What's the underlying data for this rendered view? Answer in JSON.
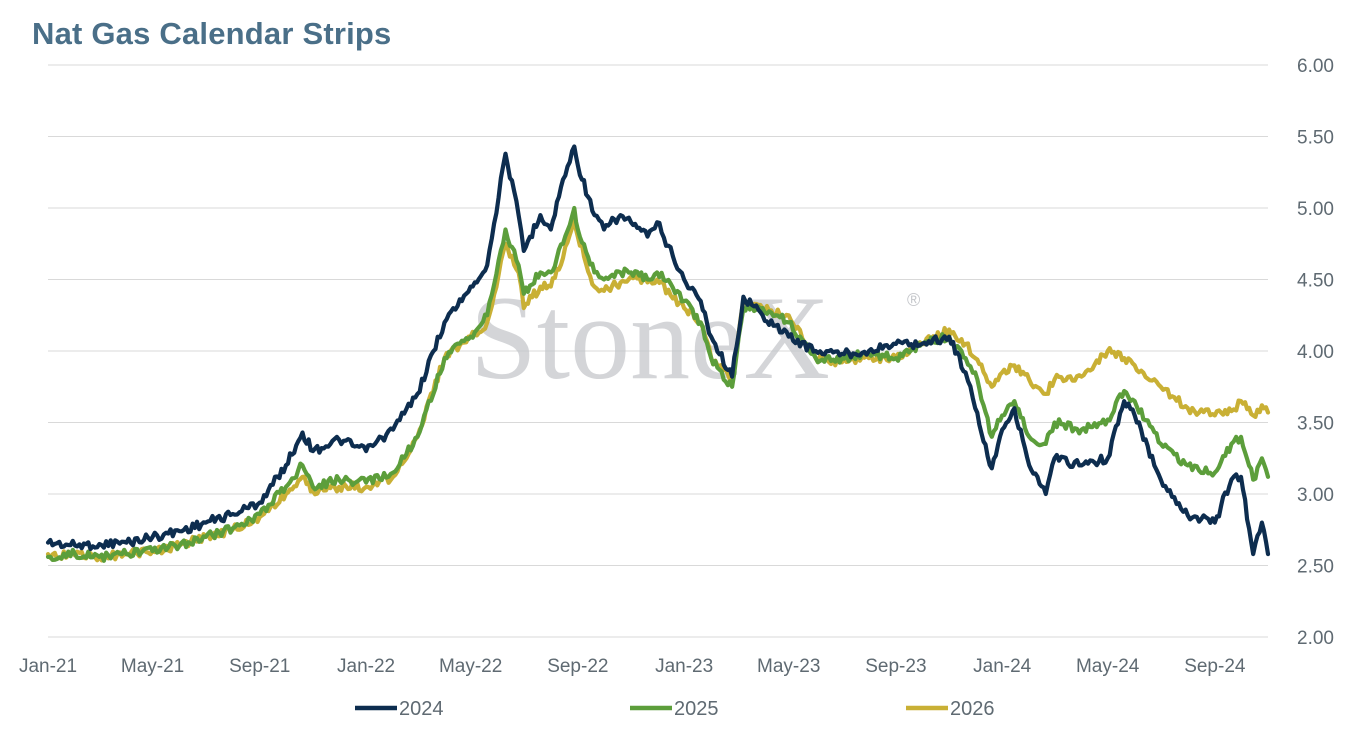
{
  "title": "Nat Gas Calendar Strips",
  "watermark": "StoneX",
  "watermark_mark": "®",
  "colors": {
    "title": "#4a6f88",
    "grid": "#d9d9d9",
    "tick_text": "#5f6a72",
    "watermark": "#c4c6ca"
  },
  "chart_data": {
    "type": "line",
    "title": "Nat Gas Calendar Strips",
    "xlabel": "",
    "ylabel": "",
    "ylim": [
      2.0,
      6.0
    ],
    "y_ticks": [
      "2.00",
      "2.50",
      "3.00",
      "3.50",
      "4.00",
      "4.50",
      "5.00",
      "5.50",
      "6.00"
    ],
    "x_ticks": [
      "Jan-21",
      "May-21",
      "Sep-21",
      "Jan-22",
      "May-22",
      "Sep-22",
      "Jan-23",
      "May-23",
      "Sep-23",
      "Jan-24",
      "May-24",
      "Sep-24"
    ],
    "x_range": [
      "2021-01",
      "2024-11"
    ],
    "grid": true,
    "legend_position": "bottom",
    "series": [
      {
        "name": "2024",
        "color": "#0d2d4f",
        "points": [
          [
            "2021-01",
            2.66
          ],
          [
            "2021-02",
            2.64
          ],
          [
            "2021-03",
            2.65
          ],
          [
            "2021-04",
            2.66
          ],
          [
            "2021-05",
            2.7
          ],
          [
            "2021-06",
            2.74
          ],
          [
            "2021-07",
            2.8
          ],
          [
            "2021-08",
            2.86
          ],
          [
            "2021-09",
            2.94
          ],
          [
            "2021-10",
            3.2
          ],
          [
            "2021-10-20",
            3.43
          ],
          [
            "2021-11",
            3.3
          ],
          [
            "2021-12",
            3.38
          ],
          [
            "2022-01",
            3.3
          ],
          [
            "2022-02",
            3.45
          ],
          [
            "2022-03",
            3.7
          ],
          [
            "2022-04",
            4.2
          ],
          [
            "2022-05",
            4.45
          ],
          [
            "2022-05-20",
            4.6
          ],
          [
            "2022-06-10",
            5.38
          ],
          [
            "2022-06-25",
            4.95
          ],
          [
            "2022-07",
            4.7
          ],
          [
            "2022-07-20",
            4.95
          ],
          [
            "2022-08",
            4.85
          ],
          [
            "2022-08-15",
            5.2
          ],
          [
            "2022-08-28",
            5.43
          ],
          [
            "2022-09",
            5.3
          ],
          [
            "2022-09-20",
            4.95
          ],
          [
            "2022-10",
            4.85
          ],
          [
            "2022-10-20",
            4.95
          ],
          [
            "2022-11",
            4.9
          ],
          [
            "2022-11-20",
            4.8
          ],
          [
            "2022-12",
            4.9
          ],
          [
            "2023-01",
            4.5
          ],
          [
            "2023-01-20",
            4.35
          ],
          [
            "2023-02",
            4.1
          ],
          [
            "2023-02-25",
            3.82
          ],
          [
            "2023-03-10",
            4.38
          ],
          [
            "2023-04",
            4.25
          ],
          [
            "2023-05",
            4.1
          ],
          [
            "2023-06",
            4.0
          ],
          [
            "2023-07",
            3.98
          ],
          [
            "2023-08",
            4.0
          ],
          [
            "2023-09",
            4.05
          ],
          [
            "2023-10",
            4.05
          ],
          [
            "2023-11",
            4.1
          ],
          [
            "2023-11-20",
            3.85
          ],
          [
            "2023-12",
            3.6
          ],
          [
            "2023-12-20",
            3.18
          ],
          [
            "2024-01",
            3.45
          ],
          [
            "2024-01-15",
            3.6
          ],
          [
            "2024-02",
            3.2
          ],
          [
            "2024-02-20",
            3.0
          ],
          [
            "2024-03",
            3.25
          ],
          [
            "2024-04",
            3.2
          ],
          [
            "2024-05",
            3.25
          ],
          [
            "2024-05-20",
            3.65
          ],
          [
            "2024-06",
            3.55
          ],
          [
            "2024-07",
            3.1
          ],
          [
            "2024-08",
            2.85
          ],
          [
            "2024-09",
            2.8
          ],
          [
            "2024-09-20",
            3.1
          ],
          [
            "2024-10",
            3.12
          ],
          [
            "2024-10-15",
            2.58
          ],
          [
            "2024-10-25",
            2.8
          ],
          [
            "2024-11",
            2.58
          ]
        ]
      },
      {
        "name": "2025",
        "color": "#5c9e3b",
        "points": [
          [
            "2021-01",
            2.56
          ],
          [
            "2021-02",
            2.58
          ],
          [
            "2021-03",
            2.56
          ],
          [
            "2021-04",
            2.58
          ],
          [
            "2021-05",
            2.6
          ],
          [
            "2021-06",
            2.64
          ],
          [
            "2021-07",
            2.7
          ],
          [
            "2021-08",
            2.76
          ],
          [
            "2021-09",
            2.86
          ],
          [
            "2021-10",
            3.05
          ],
          [
            "2021-10-20",
            3.2
          ],
          [
            "2021-11",
            3.05
          ],
          [
            "2021-12",
            3.1
          ],
          [
            "2022-01",
            3.08
          ],
          [
            "2022-02",
            3.15
          ],
          [
            "2022-03",
            3.4
          ],
          [
            "2022-04",
            3.95
          ],
          [
            "2022-05",
            4.1
          ],
          [
            "2022-05-20",
            4.25
          ],
          [
            "2022-06-10",
            4.85
          ],
          [
            "2022-06-25",
            4.6
          ],
          [
            "2022-07",
            4.4
          ],
          [
            "2022-07-20",
            4.55
          ],
          [
            "2022-08",
            4.55
          ],
          [
            "2022-08-15",
            4.75
          ],
          [
            "2022-08-28",
            5.0
          ],
          [
            "2022-09",
            4.85
          ],
          [
            "2022-09-20",
            4.55
          ],
          [
            "2022-10",
            4.5
          ],
          [
            "2022-10-20",
            4.55
          ],
          [
            "2022-11",
            4.55
          ],
          [
            "2022-11-20",
            4.5
          ],
          [
            "2022-12",
            4.55
          ],
          [
            "2023-01",
            4.35
          ],
          [
            "2023-01-20",
            4.2
          ],
          [
            "2023-02",
            3.95
          ],
          [
            "2023-02-25",
            3.75
          ],
          [
            "2023-03-10",
            4.3
          ],
          [
            "2023-04",
            4.3
          ],
          [
            "2023-05",
            4.2
          ],
          [
            "2023-06",
            3.95
          ],
          [
            "2023-07",
            3.95
          ],
          [
            "2023-08",
            3.98
          ],
          [
            "2023-09",
            3.95
          ],
          [
            "2023-10",
            4.05
          ],
          [
            "2023-11",
            4.1
          ],
          [
            "2023-11-20",
            3.95
          ],
          [
            "2023-12",
            3.85
          ],
          [
            "2023-12-20",
            3.4
          ],
          [
            "2024-01",
            3.55
          ],
          [
            "2024-01-15",
            3.65
          ],
          [
            "2024-02",
            3.4
          ],
          [
            "2024-02-20",
            3.35
          ],
          [
            "2024-03",
            3.5
          ],
          [
            "2024-04",
            3.45
          ],
          [
            "2024-05",
            3.52
          ],
          [
            "2024-05-20",
            3.72
          ],
          [
            "2024-06",
            3.65
          ],
          [
            "2024-07",
            3.35
          ],
          [
            "2024-08",
            3.2
          ],
          [
            "2024-09",
            3.15
          ],
          [
            "2024-09-20",
            3.35
          ],
          [
            "2024-10",
            3.4
          ],
          [
            "2024-10-15",
            3.1
          ],
          [
            "2024-10-25",
            3.25
          ],
          [
            "2024-11",
            3.12
          ]
        ]
      },
      {
        "name": "2026",
        "color": "#c9b035",
        "points": [
          [
            "2021-01",
            2.58
          ],
          [
            "2021-02",
            2.57
          ],
          [
            "2021-03",
            2.56
          ],
          [
            "2021-04",
            2.58
          ],
          [
            "2021-05",
            2.6
          ],
          [
            "2021-06",
            2.64
          ],
          [
            "2021-07",
            2.7
          ],
          [
            "2021-08",
            2.75
          ],
          [
            "2021-09",
            2.84
          ],
          [
            "2021-10",
            3.0
          ],
          [
            "2021-10-20",
            3.12
          ],
          [
            "2021-11",
            3.02
          ],
          [
            "2021-12",
            3.05
          ],
          [
            "2022-01",
            3.05
          ],
          [
            "2022-02",
            3.12
          ],
          [
            "2022-03",
            3.4
          ],
          [
            "2022-04",
            3.95
          ],
          [
            "2022-05",
            4.1
          ],
          [
            "2022-05-20",
            4.2
          ],
          [
            "2022-06-10",
            4.75
          ],
          [
            "2022-06-25",
            4.55
          ],
          [
            "2022-07",
            4.3
          ],
          [
            "2022-07-20",
            4.45
          ],
          [
            "2022-08",
            4.45
          ],
          [
            "2022-08-15",
            4.65
          ],
          [
            "2022-08-28",
            4.95
          ],
          [
            "2022-09",
            4.8
          ],
          [
            "2022-09-20",
            4.45
          ],
          [
            "2022-10",
            4.42
          ],
          [
            "2022-10-20",
            4.48
          ],
          [
            "2022-11",
            4.52
          ],
          [
            "2022-11-20",
            4.48
          ],
          [
            "2022-12",
            4.5
          ],
          [
            "2023-01",
            4.3
          ],
          [
            "2023-01-20",
            4.2
          ],
          [
            "2023-02",
            3.95
          ],
          [
            "2023-02-25",
            3.8
          ],
          [
            "2023-03-10",
            4.35
          ],
          [
            "2023-04",
            4.3
          ],
          [
            "2023-05",
            4.25
          ],
          [
            "2023-06",
            3.95
          ],
          [
            "2023-07",
            3.92
          ],
          [
            "2023-08",
            3.95
          ],
          [
            "2023-09",
            3.95
          ],
          [
            "2023-10",
            4.05
          ],
          [
            "2023-11",
            4.15
          ],
          [
            "2023-11-20",
            4.05
          ],
          [
            "2023-12",
            3.95
          ],
          [
            "2023-12-20",
            3.75
          ],
          [
            "2024-01",
            3.85
          ],
          [
            "2024-01-15",
            3.9
          ],
          [
            "2024-02",
            3.8
          ],
          [
            "2024-02-20",
            3.7
          ],
          [
            "2024-03",
            3.8
          ],
          [
            "2024-04",
            3.82
          ],
          [
            "2024-05",
            4.0
          ],
          [
            "2024-05-20",
            3.95
          ],
          [
            "2024-06",
            3.9
          ],
          [
            "2024-07",
            3.75
          ],
          [
            "2024-08",
            3.6
          ],
          [
            "2024-09",
            3.55
          ],
          [
            "2024-09-20",
            3.58
          ],
          [
            "2024-10",
            3.65
          ],
          [
            "2024-10-15",
            3.55
          ],
          [
            "2024-10-25",
            3.62
          ],
          [
            "2024-11",
            3.57
          ]
        ]
      }
    ]
  }
}
